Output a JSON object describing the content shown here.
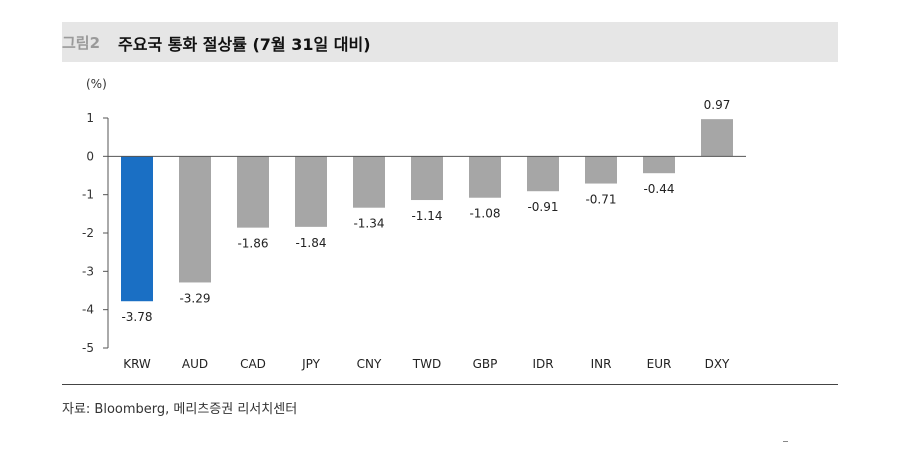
{
  "header": {
    "figure_label": "그림2",
    "title": "주요국 통화 절상률 (7월 31일 대비)"
  },
  "source_text": "자료: Bloomberg, 메리츠증권 리서치센터",
  "colors": {
    "highlight": "#1a6fc4",
    "bar": "#a6a6a6",
    "title_bg": "#e6e6e6"
  },
  "chart_data": {
    "type": "bar",
    "title": "주요국 통화 절상률 (7월 31일 대비)",
    "unit": "(%)",
    "categories": [
      "KRW",
      "AUD",
      "CAD",
      "JPY",
      "CNY",
      "TWD",
      "GBP",
      "IDR",
      "INR",
      "EUR",
      "DXY"
    ],
    "values": [
      -3.78,
      -3.29,
      -1.86,
      -1.84,
      -1.34,
      -1.14,
      -1.08,
      -0.91,
      -0.71,
      -0.44,
      0.97
    ],
    "value_labels": [
      "-3.78",
      "-3.29",
      "-1.86",
      "-1.84",
      "-1.34",
      "-1.14",
      "-1.08",
      "-0.91",
      "-0.71",
      "-0.44",
      "0.97"
    ],
    "highlight_category": "KRW",
    "ylim": [
      -5,
      1
    ],
    "yticks": [
      1,
      0,
      -1,
      -2,
      -3,
      -4,
      -5
    ],
    "ytick_labels": [
      "1",
      "0",
      "-1",
      "-2",
      "-3",
      "-4",
      "-5"
    ],
    "grid": false,
    "legend": "none"
  }
}
